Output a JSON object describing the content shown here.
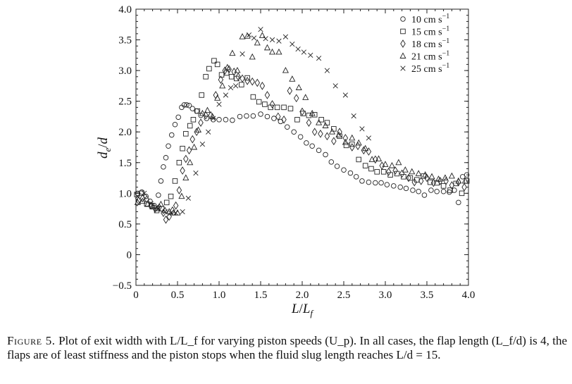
{
  "chart_data": {
    "type": "scatter",
    "xlabel": "L/L_f",
    "ylabel": "d_e/d",
    "xlim": [
      0,
      4.0
    ],
    "ylim": [
      -0.5,
      4.0
    ],
    "xticks": [
      "0",
      "0.5",
      "1.0",
      "1.5",
      "2.0",
      "2.5",
      "3.0",
      "3.5",
      "4.0"
    ],
    "xtick_values": [
      0,
      0.5,
      1.0,
      1.5,
      2.0,
      2.5,
      3.0,
      3.5,
      4.0
    ],
    "yticks": [
      "−0.5",
      "0",
      "0.5",
      "1.0",
      "1.5",
      "2.0",
      "2.5",
      "3.0",
      "3.5",
      "4.0"
    ],
    "ytick_values": [
      -0.5,
      0,
      0.5,
      1.0,
      1.5,
      2.0,
      2.5,
      3.0,
      3.5,
      4.0
    ],
    "grid": false,
    "legend_position": "top-right",
    "series": [
      {
        "name": "10 cm s−1",
        "marker": "circle",
        "points": [
          [
            0.02,
            1.0
          ],
          [
            0.07,
            1.02
          ],
          [
            0.12,
            0.95
          ],
          [
            0.17,
            0.87
          ],
          [
            0.22,
            0.8
          ],
          [
            0.27,
            0.97
          ],
          [
            0.3,
            1.2
          ],
          [
            0.33,
            1.43
          ],
          [
            0.36,
            1.58
          ],
          [
            0.39,
            1.77
          ],
          [
            0.43,
            1.95
          ],
          [
            0.47,
            2.12
          ],
          [
            0.51,
            2.24
          ],
          [
            0.55,
            2.4
          ],
          [
            0.58,
            2.44
          ],
          [
            0.61,
            2.44
          ],
          [
            0.64,
            2.43
          ],
          [
            0.68,
            2.38
          ],
          [
            0.73,
            2.34
          ],
          [
            0.78,
            2.27
          ],
          [
            0.85,
            2.22
          ],
          [
            0.93,
            2.2
          ],
          [
            1.0,
            2.2
          ],
          [
            1.08,
            2.2
          ],
          [
            1.16,
            2.19
          ],
          [
            1.25,
            2.25
          ],
          [
            1.33,
            2.26
          ],
          [
            1.41,
            2.26
          ],
          [
            1.5,
            2.29
          ],
          [
            1.58,
            2.25
          ],
          [
            1.66,
            2.22
          ],
          [
            1.74,
            2.17
          ],
          [
            1.82,
            2.08
          ],
          [
            1.9,
            2.0
          ],
          [
            1.98,
            1.92
          ],
          [
            2.05,
            1.82
          ],
          [
            2.12,
            1.77
          ],
          [
            2.2,
            1.7
          ],
          [
            2.28,
            1.63
          ],
          [
            2.35,
            1.51
          ],
          [
            2.42,
            1.44
          ],
          [
            2.5,
            1.38
          ],
          [
            2.58,
            1.33
          ],
          [
            2.65,
            1.27
          ],
          [
            2.72,
            1.2
          ],
          [
            2.8,
            1.18
          ],
          [
            2.88,
            1.17
          ],
          [
            2.95,
            1.17
          ],
          [
            3.02,
            1.14
          ],
          [
            3.1,
            1.12
          ],
          [
            3.18,
            1.1
          ],
          [
            3.25,
            1.08
          ],
          [
            3.33,
            1.05
          ],
          [
            3.4,
            1.03
          ],
          [
            3.47,
            0.97
          ],
          [
            3.55,
            1.05
          ],
          [
            3.62,
            1.03
          ],
          [
            3.7,
            1.03
          ],
          [
            3.77,
            1.02
          ],
          [
            3.83,
            1.05
          ],
          [
            3.88,
            0.85
          ],
          [
            3.93,
            1.27
          ],
          [
            3.98,
            1.3
          ]
        ]
      },
      {
        "name": "15 cm s−1",
        "marker": "square",
        "points": [
          [
            0.01,
            0.98
          ],
          [
            0.07,
            1.0
          ],
          [
            0.13,
            0.83
          ],
          [
            0.19,
            0.8
          ],
          [
            0.25,
            0.72
          ],
          [
            0.31,
            0.75
          ],
          [
            0.37,
            0.85
          ],
          [
            0.42,
            0.95
          ],
          [
            0.47,
            1.2
          ],
          [
            0.52,
            1.5
          ],
          [
            0.56,
            1.73
          ],
          [
            0.6,
            1.97
          ],
          [
            0.65,
            2.1
          ],
          [
            0.69,
            2.2
          ],
          [
            0.74,
            2.34
          ],
          [
            0.79,
            2.6
          ],
          [
            0.84,
            2.9
          ],
          [
            0.88,
            3.03
          ],
          [
            0.94,
            3.16
          ],
          [
            0.98,
            3.1
          ],
          [
            1.03,
            2.93
          ],
          [
            1.09,
            2.96
          ],
          [
            1.15,
            2.9
          ],
          [
            1.21,
            2.87
          ],
          [
            1.27,
            2.77
          ],
          [
            1.34,
            2.88
          ],
          [
            1.41,
            2.57
          ],
          [
            1.48,
            2.49
          ],
          [
            1.55,
            2.45
          ],
          [
            1.62,
            2.4
          ],
          [
            1.7,
            2.4
          ],
          [
            1.78,
            2.4
          ],
          [
            1.86,
            2.38
          ],
          [
            1.94,
            2.2
          ],
          [
            2.01,
            2.3
          ],
          [
            2.08,
            2.27
          ],
          [
            2.15,
            2.28
          ],
          [
            2.23,
            2.2
          ],
          [
            2.3,
            2.15
          ],
          [
            2.38,
            2.05
          ],
          [
            2.45,
            1.93
          ],
          [
            2.53,
            1.78
          ],
          [
            2.6,
            1.8
          ],
          [
            2.68,
            1.55
          ],
          [
            2.76,
            1.45
          ],
          [
            2.83,
            1.4
          ],
          [
            2.9,
            1.35
          ],
          [
            2.98,
            1.35
          ],
          [
            3.06,
            1.3
          ],
          [
            3.14,
            1.32
          ],
          [
            3.22,
            1.27
          ],
          [
            3.3,
            1.25
          ],
          [
            3.38,
            1.22
          ],
          [
            3.46,
            1.28
          ],
          [
            3.54,
            1.18
          ],
          [
            3.62,
            1.17
          ],
          [
            3.7,
            1.12
          ],
          [
            3.78,
            1.05
          ],
          [
            3.85,
            1.16
          ],
          [
            3.92,
            1.0
          ],
          [
            3.98,
            1.2
          ]
        ]
      },
      {
        "name": "18 cm s−1",
        "marker": "diamond",
        "points": [
          [
            0.03,
            0.88
          ],
          [
            0.08,
            0.92
          ],
          [
            0.13,
            0.9
          ],
          [
            0.18,
            0.8
          ],
          [
            0.23,
            0.75
          ],
          [
            0.28,
            0.77
          ],
          [
            0.33,
            0.68
          ],
          [
            0.36,
            0.57
          ],
          [
            0.4,
            0.62
          ],
          [
            0.44,
            0.72
          ],
          [
            0.48,
            0.8
          ],
          [
            0.52,
            1.05
          ],
          [
            0.56,
            1.37
          ],
          [
            0.6,
            1.56
          ],
          [
            0.64,
            1.7
          ],
          [
            0.68,
            1.88
          ],
          [
            0.73,
            2.0
          ],
          [
            0.78,
            2.15
          ],
          [
            0.84,
            2.27
          ],
          [
            0.9,
            2.27
          ],
          [
            0.96,
            2.6
          ],
          [
            1.02,
            2.85
          ],
          [
            1.07,
            3.0
          ],
          [
            1.12,
            3.02
          ],
          [
            1.18,
            2.98
          ],
          [
            1.23,
            2.9
          ],
          [
            1.28,
            2.87
          ],
          [
            1.34,
            2.83
          ],
          [
            1.4,
            2.82
          ],
          [
            1.46,
            2.8
          ],
          [
            1.52,
            2.75
          ],
          [
            1.58,
            2.6
          ],
          [
            1.64,
            2.45
          ],
          [
            1.71,
            2.25
          ],
          [
            1.78,
            2.2
          ],
          [
            1.85,
            2.67
          ],
          [
            1.93,
            2.55
          ],
          [
            2.0,
            2.33
          ],
          [
            2.08,
            2.15
          ],
          [
            2.15,
            2.0
          ],
          [
            2.22,
            1.97
          ],
          [
            2.3,
            1.93
          ],
          [
            2.38,
            1.85
          ],
          [
            2.45,
            2.0
          ],
          [
            2.52,
            1.9
          ],
          [
            2.6,
            1.75
          ],
          [
            2.67,
            1.77
          ],
          [
            2.74,
            1.7
          ],
          [
            2.8,
            1.68
          ],
          [
            2.88,
            1.55
          ],
          [
            2.96,
            1.45
          ],
          [
            3.04,
            1.35
          ],
          [
            3.12,
            1.37
          ],
          [
            3.2,
            1.32
          ],
          [
            3.28,
            1.25
          ],
          [
            3.35,
            1.18
          ],
          [
            3.43,
            1.2
          ],
          [
            3.5,
            1.25
          ],
          [
            3.58,
            1.17
          ],
          [
            3.66,
            1.2
          ],
          [
            3.73,
            1.2
          ],
          [
            3.8,
            1.13
          ],
          [
            3.88,
            1.18
          ],
          [
            3.95,
            1.1
          ]
        ]
      },
      {
        "name": "21 cm s−1",
        "marker": "triangle",
        "points": [
          [
            0.02,
            0.85
          ],
          [
            0.08,
            0.87
          ],
          [
            0.14,
            0.82
          ],
          [
            0.2,
            0.78
          ],
          [
            0.26,
            0.75
          ],
          [
            0.3,
            0.82
          ],
          [
            0.35,
            0.72
          ],
          [
            0.4,
            0.7
          ],
          [
            0.45,
            0.68
          ],
          [
            0.5,
            0.68
          ],
          [
            0.55,
            0.95
          ],
          [
            0.6,
            1.25
          ],
          [
            0.65,
            1.5
          ],
          [
            0.7,
            1.75
          ],
          [
            0.75,
            2.03
          ],
          [
            0.8,
            2.3
          ],
          [
            0.86,
            2.35
          ],
          [
            0.92,
            2.25
          ],
          [
            0.98,
            2.55
          ],
          [
            1.04,
            2.75
          ],
          [
            1.1,
            3.05
          ],
          [
            1.16,
            3.28
          ],
          [
            1.22,
            3.0
          ],
          [
            1.28,
            3.55
          ],
          [
            1.34,
            3.56
          ],
          [
            1.4,
            3.22
          ],
          [
            1.46,
            3.45
          ],
          [
            1.52,
            3.57
          ],
          [
            1.58,
            3.37
          ],
          [
            1.64,
            3.3
          ],
          [
            1.72,
            3.3
          ],
          [
            1.8,
            3.0
          ],
          [
            1.88,
            2.86
          ],
          [
            1.96,
            2.72
          ],
          [
            2.04,
            2.56
          ],
          [
            2.12,
            2.3
          ],
          [
            2.2,
            2.15
          ],
          [
            2.28,
            2.1
          ],
          [
            2.36,
            2.0
          ],
          [
            2.44,
            1.95
          ],
          [
            2.52,
            1.83
          ],
          [
            2.6,
            1.9
          ],
          [
            2.68,
            1.82
          ],
          [
            2.76,
            1.73
          ],
          [
            2.84,
            1.55
          ],
          [
            2.92,
            1.56
          ],
          [
            3.0,
            1.47
          ],
          [
            3.08,
            1.45
          ],
          [
            3.16,
            1.5
          ],
          [
            3.24,
            1.38
          ],
          [
            3.32,
            1.35
          ],
          [
            3.4,
            1.32
          ],
          [
            3.48,
            1.3
          ],
          [
            3.56,
            1.27
          ],
          [
            3.64,
            1.23
          ],
          [
            3.72,
            1.25
          ],
          [
            3.8,
            1.28
          ],
          [
            3.88,
            1.2
          ],
          [
            3.96,
            1.2
          ]
        ]
      },
      {
        "name": "25 cm s−1",
        "marker": "cross",
        "points": [
          [
            0.02,
            0.95
          ],
          [
            0.1,
            1.0
          ],
          [
            0.18,
            0.83
          ],
          [
            0.27,
            0.75
          ],
          [
            0.35,
            0.7
          ],
          [
            0.42,
            0.68
          ],
          [
            0.48,
            0.68
          ],
          [
            0.56,
            0.7
          ],
          [
            0.63,
            0.92
          ],
          [
            0.72,
            1.33
          ],
          [
            0.8,
            1.8
          ],
          [
            0.87,
            2.0
          ],
          [
            0.93,
            2.22
          ],
          [
            1.0,
            2.45
          ],
          [
            1.08,
            2.6
          ],
          [
            1.14,
            2.72
          ],
          [
            1.2,
            2.75
          ],
          [
            1.28,
            3.27
          ],
          [
            1.36,
            3.58
          ],
          [
            1.42,
            3.53
          ],
          [
            1.5,
            3.67
          ],
          [
            1.56,
            3.52
          ],
          [
            1.64,
            3.5
          ],
          [
            1.72,
            3.48
          ],
          [
            1.8,
            3.55
          ],
          [
            1.88,
            3.43
          ],
          [
            1.95,
            3.35
          ],
          [
            2.02,
            3.3
          ],
          [
            2.1,
            3.25
          ],
          [
            2.2,
            3.2
          ],
          [
            2.3,
            3.0
          ],
          [
            2.4,
            2.75
          ],
          [
            2.52,
            2.6
          ],
          [
            2.62,
            2.26
          ],
          [
            2.72,
            2.05
          ],
          [
            2.8,
            1.9
          ]
        ]
      }
    ],
    "legend_prefix": "",
    "legend_labels": [
      "10 cm s",
      "15 cm s",
      "18 cm s",
      "21 cm s",
      "25 cm s"
    ],
    "legend_superscript": "−1"
  },
  "caption": {
    "lead": "Figure 5.",
    "body": "Plot of exit width with L/L_f for varying piston speeds (U_p). In all cases, the flap length (L_f/d) is 4, the flaps are of least stiffness and the piston stops when the fluid slug length reaches L/d = 15."
  }
}
